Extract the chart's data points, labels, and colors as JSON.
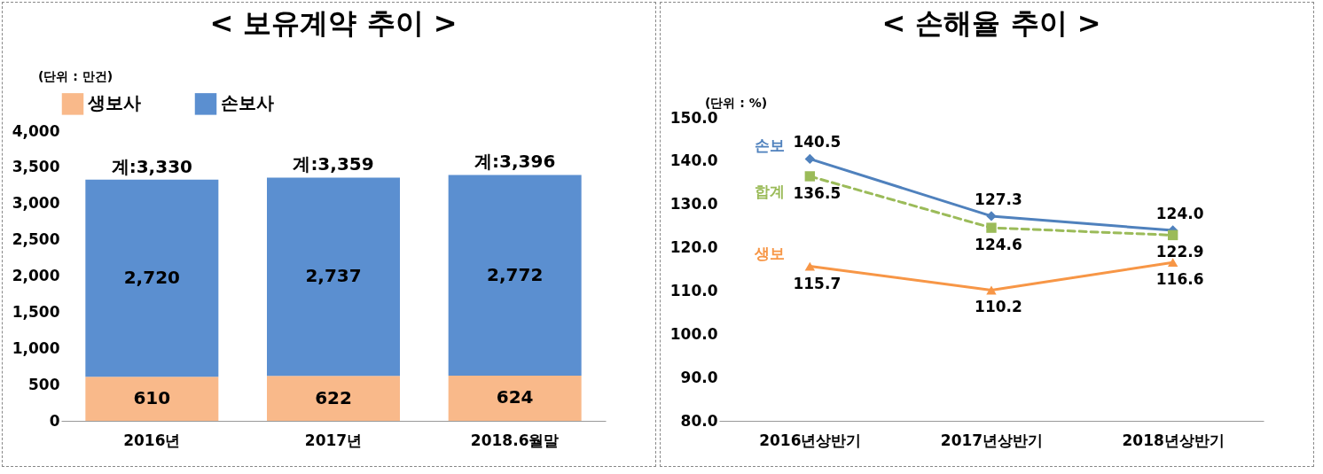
{
  "chart_data": [
    {
      "type": "bar",
      "title": "< 보유계약 추이 >",
      "annotations": [
        "(단위 : 만건)"
      ],
      "categories": [
        "2016년",
        "2017년",
        "2018.6월말"
      ],
      "stacked": true,
      "legend": "top",
      "grid": false,
      "series": [
        {
          "name": "생보사",
          "color": "#f9b98a",
          "values": [
            610,
            622,
            624
          ],
          "value_labels": [
            "610",
            "622",
            "624"
          ]
        },
        {
          "name": "손보사",
          "color": "#5b8fd0",
          "values": [
            2720,
            2737,
            2772
          ],
          "value_labels": [
            "2,720",
            "2,737",
            "2,772"
          ]
        }
      ],
      "totals": [
        "계:3,330",
        "계:3,359",
        "계:3,396"
      ],
      "ylim": [
        0,
        4000
      ],
      "yticks": [
        0,
        500,
        {
          "value": 1000,
          "label": "1,000"
        },
        {
          "value": 1500,
          "label": "1,500"
        },
        {
          "value": 2000,
          "label": "2,000"
        },
        {
          "value": 2500,
          "label": "2,500"
        },
        {
          "value": 3000,
          "label": "3,000"
        },
        {
          "value": 3500,
          "label": "3,500"
        },
        {
          "value": 4000,
          "label": "4,000"
        }
      ]
    },
    {
      "type": "line",
      "title": "< 손해율 추이 >",
      "annotations": [
        "(단위 : %)"
      ],
      "categories": [
        "2016년상반기",
        "2017년상반기",
        "2018년상반기"
      ],
      "legend": false,
      "grid": false,
      "series": [
        {
          "name": "손보",
          "color": "#4f81bd",
          "marker": "diamond",
          "line_style": "solid",
          "values": [
            140.5,
            127.3,
            124.0
          ],
          "value_labels": [
            "140.5",
            "127.3",
            "124.0"
          ]
        },
        {
          "name": "합계",
          "color": "#9bbb59",
          "marker": "square",
          "line_style": "dashed",
          "values": [
            136.5,
            124.6,
            122.9
          ],
          "value_labels": [
            "136.5",
            "124.6",
            "122.9"
          ]
        },
        {
          "name": "생보",
          "color": "#f79646",
          "marker": "triangle",
          "line_style": "solid",
          "values": [
            115.7,
            110.2,
            116.6
          ],
          "value_labels": [
            "115.7",
            "110.2",
            "116.6"
          ]
        }
      ],
      "ylim": [
        80,
        150
      ],
      "yticks": [
        {
          "value": 80,
          "label": "80.0"
        },
        {
          "value": 90,
          "label": "90.0"
        },
        {
          "value": 100,
          "label": "100.0"
        },
        {
          "value": 110,
          "label": "110.0"
        },
        {
          "value": 120,
          "label": "120.0"
        },
        {
          "value": 130,
          "label": "130.0"
        },
        {
          "value": 140,
          "label": "140.0"
        },
        {
          "value": 150,
          "label": "150.0"
        }
      ]
    }
  ]
}
